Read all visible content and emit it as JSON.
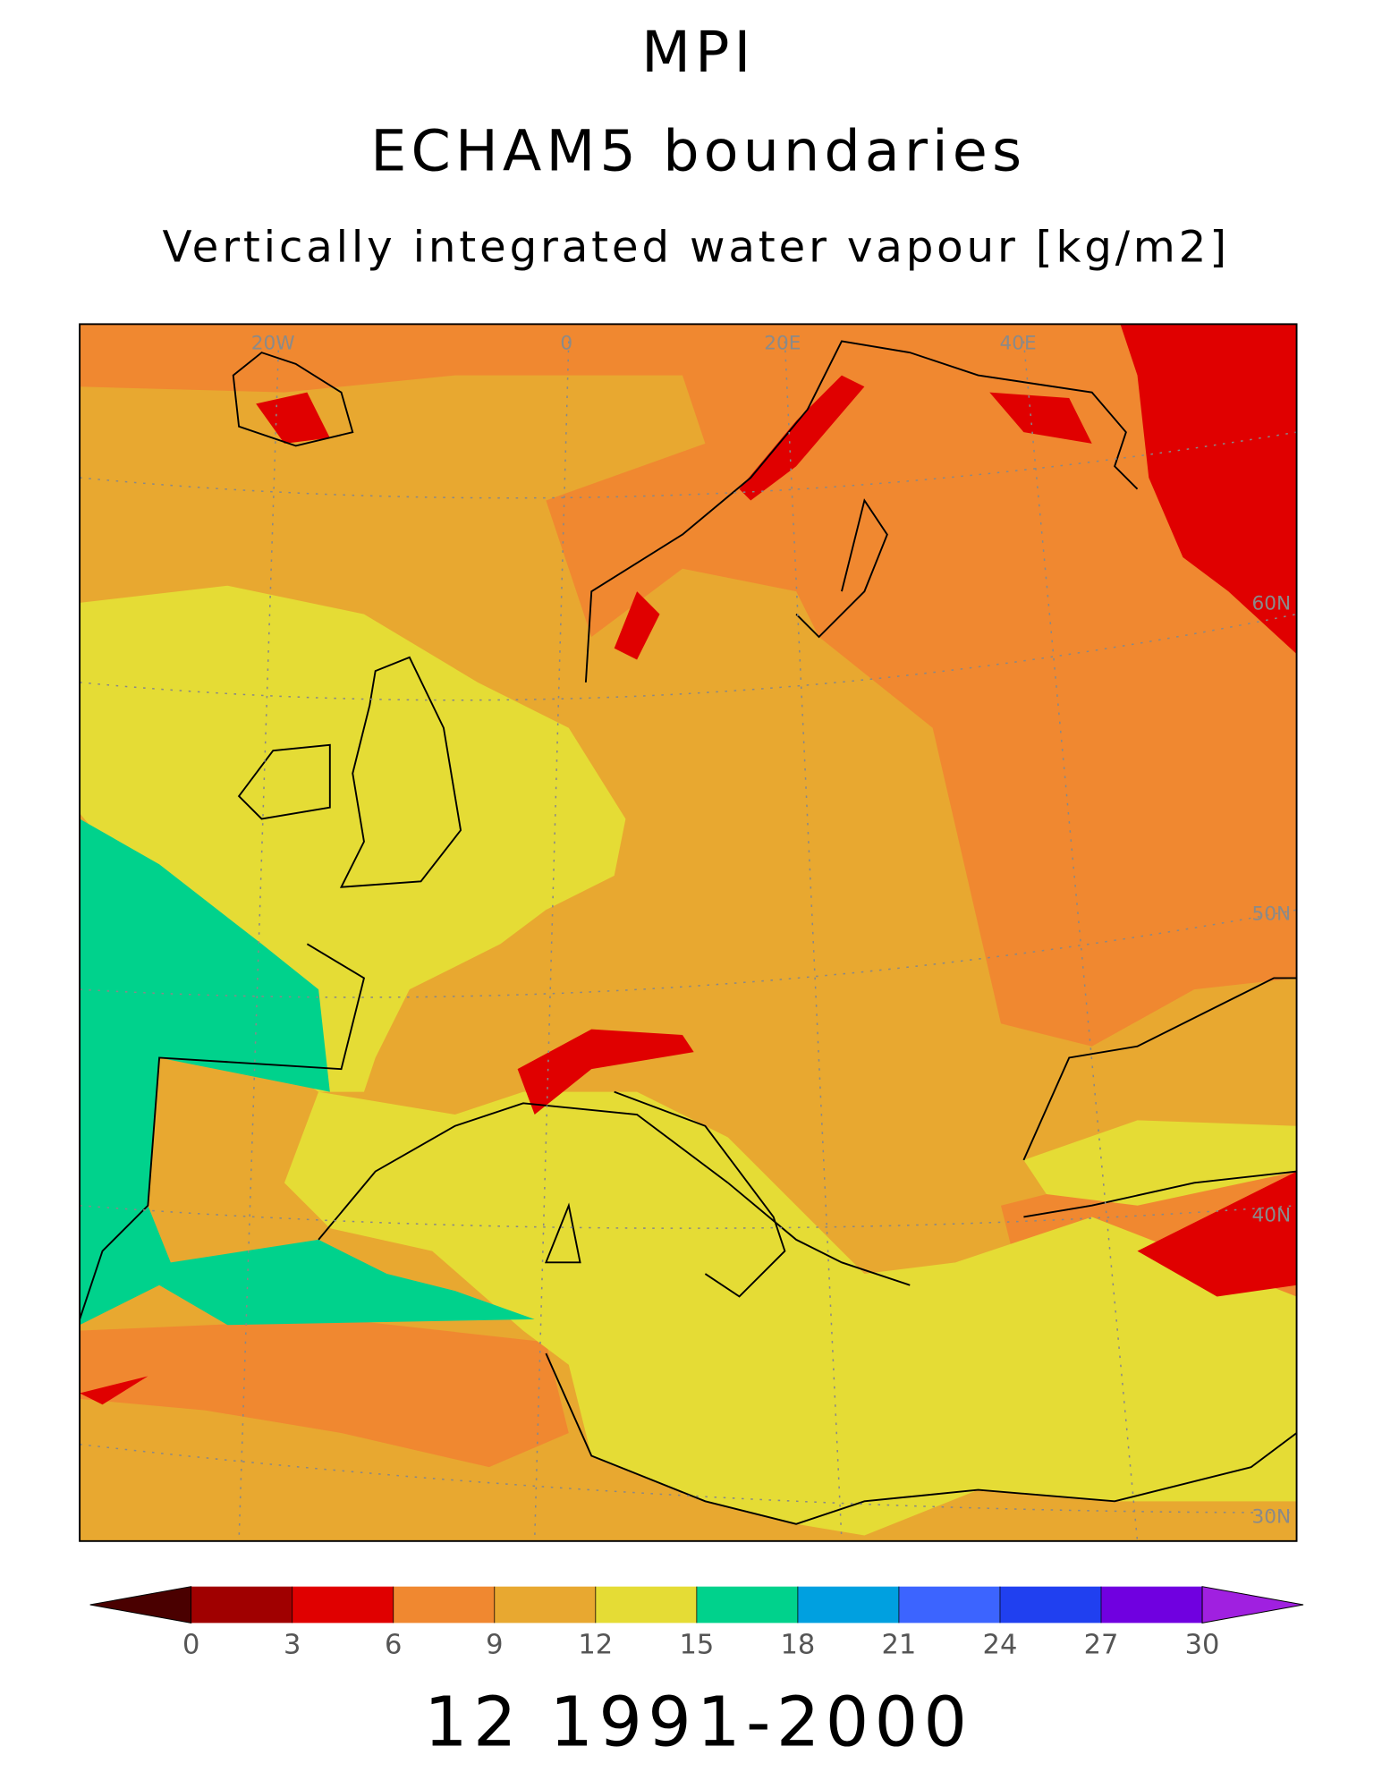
{
  "title": {
    "line1": "MPI",
    "line2": "ECHAM5 boundaries",
    "subtitle": "Vertically integrated water vapour [kg/m2]"
  },
  "map": {
    "lon_labels": [
      "20W",
      "0",
      "20E",
      "40E"
    ],
    "lat_labels": [
      "60N",
      "50N",
      "40N",
      "30N"
    ]
  },
  "colorbar": {
    "levels": [
      0,
      3,
      6,
      9,
      12,
      15,
      18,
      21,
      24,
      27,
      30
    ],
    "colors": [
      "#4a0000",
      "#a00000",
      "#e00000",
      "#f08830",
      "#e8a830",
      "#e5dc35",
      "#00d28c",
      "#00a0e0",
      "#3c64ff",
      "#2040f0",
      "#7000e0",
      "#a020e0"
    ]
  },
  "footer": "12 1991-2000"
}
